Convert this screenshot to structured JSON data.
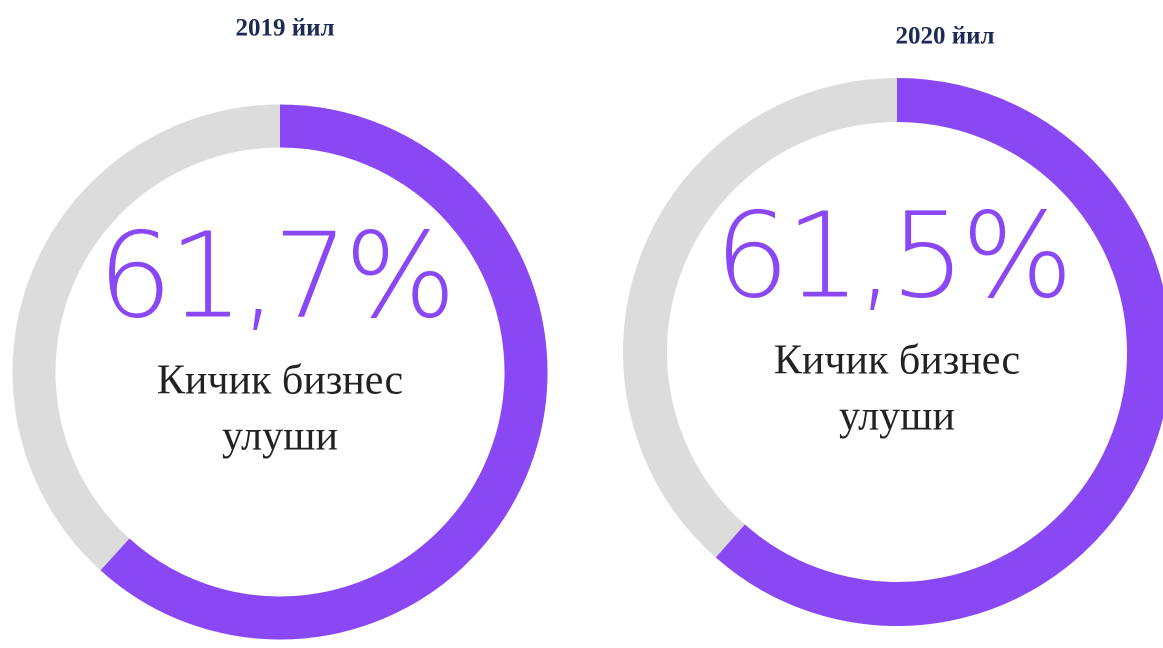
{
  "chart_data": [
    {
      "type": "donut",
      "title": "2019 йил",
      "values": [
        61.7
      ],
      "value_labels": [
        "61,7%"
      ],
      "color": "#8a48f5",
      "rest_color": "#dcdcdc",
      "label_lines": [
        "Кичик бизнес",
        "улуши"
      ]
    },
    {
      "type": "donut",
      "title": "2020 йил",
      "values": [
        61.5
      ],
      "value_labels": [
        "61,5%"
      ],
      "color": "#8a48f5",
      "rest_color": "#dcdcdc",
      "label_lines": [
        "Кичик бизнес",
        "улуши"
      ]
    }
  ]
}
